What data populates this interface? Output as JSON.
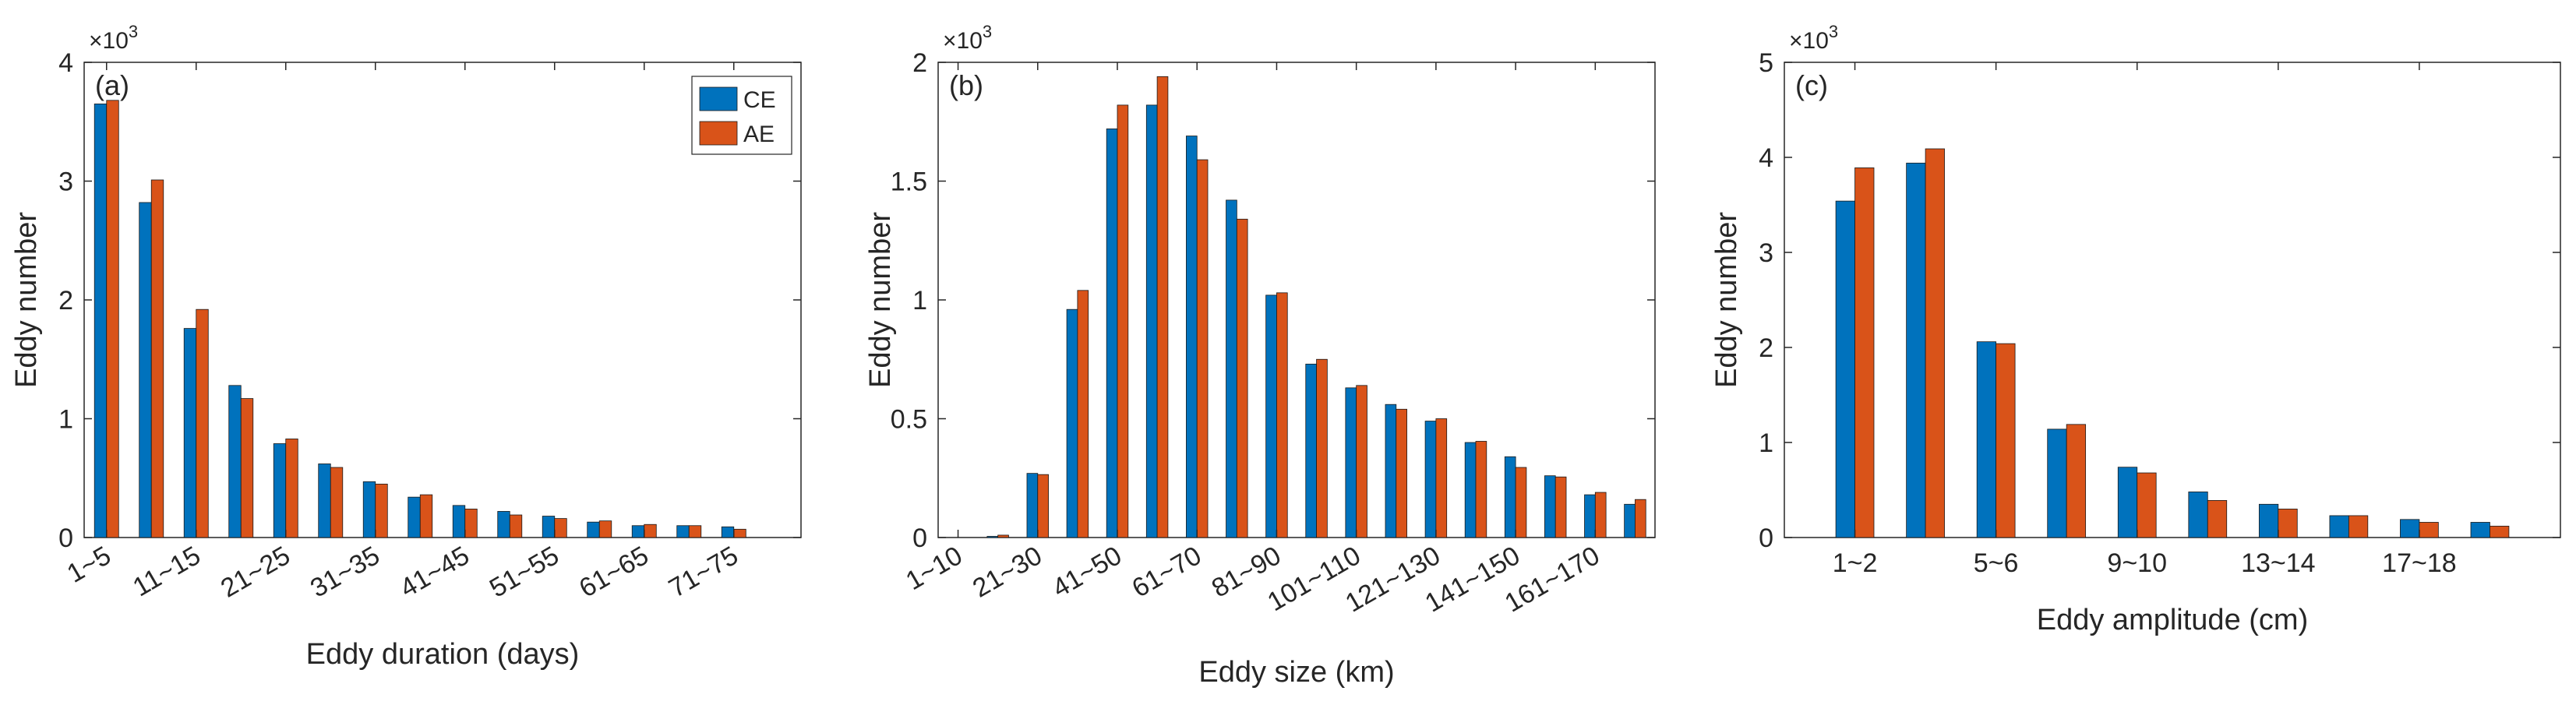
{
  "colors": {
    "CE": "#0072BD",
    "AE": "#D95319",
    "axis": "#262626"
  },
  "legend": {
    "entries": [
      "CE",
      "AE"
    ]
  },
  "chart_data": [
    {
      "type": "bar",
      "panel_label": "(a)",
      "categories": [
        "1~5",
        "6~10",
        "11~15",
        "16~20",
        "21~25",
        "26~30",
        "31~35",
        "36~40",
        "41~45",
        "46~50",
        "51~55",
        "56~60",
        "61~65",
        "66~70",
        "71~75",
        "76~80"
      ],
      "xticks": [
        "1~5",
        "11~15",
        "21~25",
        "31~35",
        "41~45",
        "51~55",
        "61~65",
        "71~75"
      ],
      "series": [
        {
          "name": "CE",
          "values": [
            3650,
            2820,
            1760,
            1280,
            790,
            620,
            470,
            340,
            270,
            220,
            180,
            130,
            100,
            100,
            90,
            0
          ]
        },
        {
          "name": "AE",
          "values": [
            3680,
            3010,
            1920,
            1170,
            830,
            590,
            450,
            360,
            240,
            190,
            160,
            140,
            110,
            100,
            70,
            0
          ]
        }
      ],
      "xlabel": "Eddy duration (days)",
      "ylabel": "Eddy number",
      "ylim": [
        0,
        4000
      ],
      "yticks": [
        0,
        1,
        2,
        3,
        4
      ],
      "y_multiplier": "×10",
      "y_exponent": "3",
      "legend_position": "top-right",
      "grid": false
    },
    {
      "type": "bar",
      "panel_label": "(b)",
      "categories": [
        "1~10",
        "11~20",
        "21~30",
        "31~40",
        "41~50",
        "51~60",
        "61~70",
        "71~80",
        "81~90",
        "91~100",
        "101~110",
        "111~120",
        "121~130",
        "131~140",
        "141~150",
        "151~160",
        "161~170",
        "171~180"
      ],
      "xticks": [
        "1~10",
        "21~30",
        "41~50",
        "61~70",
        "81~90",
        "101~110",
        "121~130",
        "141~150",
        "161~170"
      ],
      "series": [
        {
          "name": "CE",
          "values": [
            0,
            5,
            270,
            960,
            1720,
            1820,
            1690,
            1420,
            1020,
            730,
            630,
            560,
            490,
            400,
            340,
            260,
            180,
            140
          ]
        },
        {
          "name": "AE",
          "values": [
            0,
            10,
            265,
            1040,
            1820,
            1940,
            1590,
            1340,
            1030,
            750,
            640,
            540,
            500,
            405,
            295,
            255,
            190,
            160
          ]
        }
      ],
      "xlabel": "Eddy size  (km)",
      "ylabel": "Eddy number",
      "ylim": [
        0,
        2000
      ],
      "yticks": [
        "0",
        "0.5",
        "1",
        "1.5",
        "2"
      ],
      "y_multiplier": "×10",
      "y_exponent": "3",
      "grid": false
    },
    {
      "type": "bar",
      "panel_label": "(c)",
      "categories": [
        "1~2",
        "3~4",
        "5~6",
        "7~8",
        "9~10",
        "11~12",
        "13~14",
        "15~16",
        "17~18",
        "19~20"
      ],
      "xticks": [
        "1~2",
        "5~6",
        "9~10",
        "13~14",
        "17~18"
      ],
      "series": [
        {
          "name": "CE",
          "values": [
            3540,
            3940,
            2060,
            1140,
            740,
            480,
            350,
            230,
            190,
            160
          ]
        },
        {
          "name": "AE",
          "values": [
            3890,
            4090,
            2040,
            1190,
            680,
            390,
            300,
            230,
            160,
            120
          ]
        }
      ],
      "xlabel": "Eddy amplitude  (cm)",
      "ylabel": "Eddy number",
      "ylim": [
        0,
        5000
      ],
      "yticks": [
        0,
        1,
        2,
        3,
        4,
        5
      ],
      "y_multiplier": "×10",
      "y_exponent": "3",
      "grid": false
    }
  ]
}
